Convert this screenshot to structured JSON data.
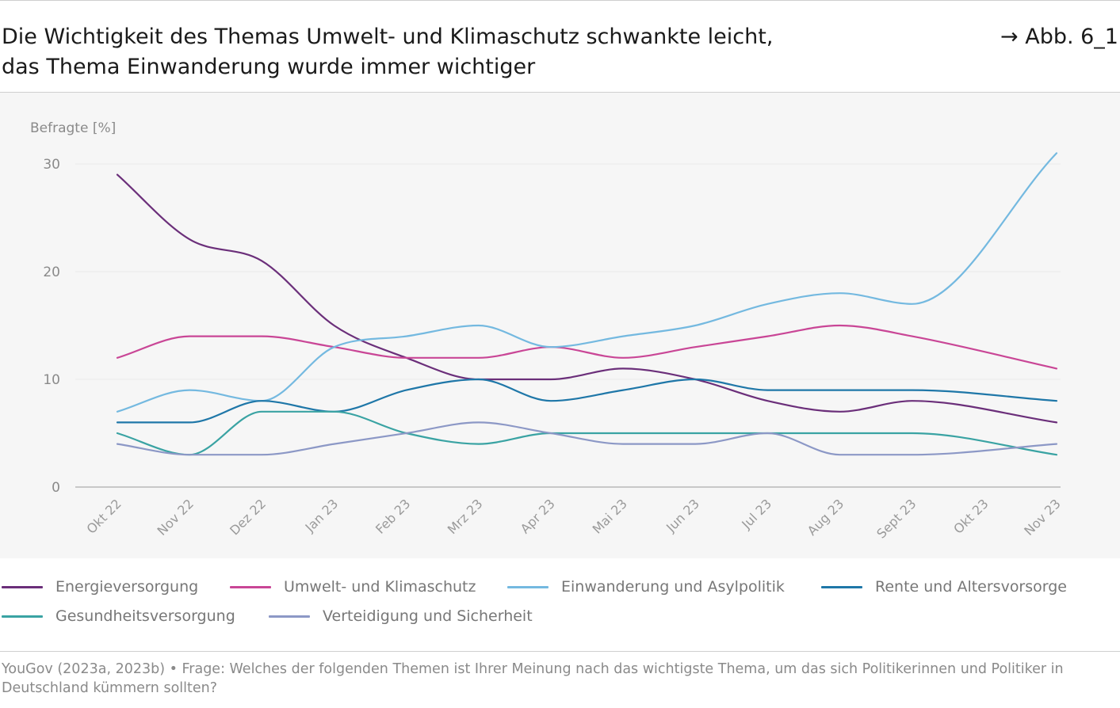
{
  "header": {
    "title_line1": "Die Wichtigkeit des Themas Umwelt- und Klimaschutz schwankte leicht,",
    "title_line2": "das Thema Einwanderung wurde immer wichtiger",
    "figure_ref": "→ Abb. 6_1"
  },
  "chart_data": {
    "type": "line",
    "title": "Die Wichtigkeit des Themas Umwelt- und Klimaschutz schwankte leicht, das Thema Einwanderung wurde immer wichtiger",
    "ylabel": "Befragte [%]",
    "xlabel": "",
    "ylim": [
      0,
      30
    ],
    "yticks": [
      0,
      10,
      20,
      30
    ],
    "grid": true,
    "legend_position": "bottom",
    "categories": [
      "Okt 22",
      "Nov 22",
      "Dez 22",
      "Jan 23",
      "Feb 23",
      "Mrz 23",
      "Apr 23",
      "Mai 23",
      "Jun 23",
      "Jul 23",
      "Aug 23",
      "Sept 23",
      "Okt 23",
      "Nov 23"
    ],
    "series": [
      {
        "name": "Energieversorgung",
        "color": "#6b2f7a",
        "values": [
          29,
          23,
          21,
          15,
          12,
          10,
          10,
          11,
          10,
          8,
          7,
          8,
          null,
          6
        ]
      },
      {
        "name": "Umwelt- und Klimaschutz",
        "color": "#c94696",
        "values": [
          12,
          14,
          14,
          13,
          12,
          12,
          13,
          12,
          13,
          14,
          15,
          14,
          null,
          11
        ]
      },
      {
        "name": "Einwanderung und Asylpolitik",
        "color": "#74b9e0",
        "values": [
          7,
          9,
          8,
          13,
          14,
          15,
          13,
          14,
          15,
          17,
          18,
          17,
          null,
          31
        ]
      },
      {
        "name": "Rente und Altersvorsorge",
        "color": "#1f77a8",
        "values": [
          6,
          6,
          8,
          7,
          9,
          10,
          8,
          9,
          10,
          9,
          9,
          9,
          null,
          8
        ]
      },
      {
        "name": "Gesundheitsversorgung",
        "color": "#3aa3a3",
        "values": [
          5,
          3,
          7,
          7,
          5,
          4,
          5,
          5,
          5,
          5,
          5,
          5,
          null,
          3
        ]
      },
      {
        "name": "Verteidigung und Sicherheit",
        "color": "#8c98c6",
        "values": [
          4,
          3,
          3,
          4,
          5,
          6,
          5,
          4,
          4,
          5,
          3,
          3,
          null,
          4
        ]
      }
    ]
  },
  "source": {
    "text": "YouGov (2023a, 2023b) • Frage: Welches der folgenden Themen ist Ihrer Meinung nach das wichtigste Thema, um das sich Politikerinnen und Politiker in Deutschland kümmern sollten?"
  }
}
